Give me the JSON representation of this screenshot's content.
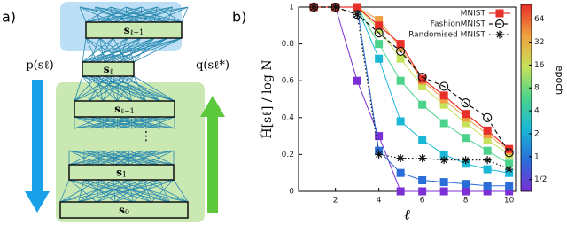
{
  "panel_labels": [
    "a)",
    "b)"
  ],
  "diagram": {
    "layers": [
      {
        "base": "s",
        "sub": "ℓ+1"
      },
      {
        "base": "s",
        "sub": "ℓ"
      },
      {
        "base": "s",
        "sub": "ℓ−1"
      },
      {
        "base": "s",
        "sub": "1"
      },
      {
        "base": "s",
        "sub": "0"
      }
    ],
    "ellipsis": "⋮",
    "left_arrow_label": "p(sℓ)",
    "right_arrow_label": "q(sℓ*)"
  },
  "chart_data": {
    "type": "line",
    "x_label": "ℓ",
    "y_label": "Ĥ[sℓ] / log N",
    "x": [
      1,
      2,
      3,
      4,
      5,
      6,
      7,
      8,
      9,
      10
    ],
    "xlim": [
      0.3,
      10.3
    ],
    "xticks": [
      2,
      4,
      6,
      8,
      10
    ],
    "ylim": [
      0,
      1
    ],
    "yticks": [
      0,
      0.2,
      0.4,
      0.6,
      0.8,
      1
    ],
    "legend": "upper right",
    "series": [
      {
        "name": "MNIST",
        "color": "#e8302a",
        "marker": "square",
        "dash": "solid",
        "values": [
          1,
          1,
          1,
          0.9,
          0.8,
          0.61,
          0.52,
          0.42,
          0.33,
          0.23
        ]
      },
      {
        "name": "FashionMNIST",
        "color": "#111111",
        "marker": "circle",
        "dash": "dashed",
        "values": [
          1,
          1,
          0.96,
          0.86,
          0.76,
          0.62,
          0.57,
          0.48,
          0.4,
          0.21
        ]
      },
      {
        "name": "Randomised MNIST",
        "color": "#111111",
        "marker": "star",
        "dash": "dotted",
        "values": [
          1,
          1,
          0.96,
          0.2,
          0.18,
          0.18,
          0.17,
          0.17,
          0.17,
          0.12
        ]
      }
    ],
    "epoch_series": [
      {
        "epoch": 0.5,
        "color": "#7b2fd4",
        "values": [
          1,
          1,
          0.6,
          0.3,
          0,
          0,
          0,
          0,
          0,
          0
        ]
      },
      {
        "epoch": 1,
        "color": "#2a6dd8",
        "values": [
          1,
          1,
          1,
          0.22,
          0.1,
          0.06,
          0.05,
          0.04,
          0.03,
          0.03
        ]
      },
      {
        "epoch": 2,
        "color": "#1ab8d6",
        "values": [
          1,
          1,
          1,
          0.72,
          0.38,
          0.28,
          0.2,
          0.15,
          0.12,
          0.1
        ]
      },
      {
        "epoch": 4,
        "color": "#4cd38b",
        "values": [
          1,
          1,
          1,
          0.8,
          0.6,
          0.47,
          0.37,
          0.29,
          0.22,
          0.15
        ]
      },
      {
        "epoch": 8,
        "color": "#c6e25a",
        "values": [
          1,
          1,
          1,
          0.88,
          0.72,
          0.57,
          0.47,
          0.37,
          0.28,
          0.2
        ]
      },
      {
        "epoch": 32,
        "color": "#f0a040",
        "values": [
          1,
          1,
          1,
          0.93,
          0.78,
          0.6,
          0.5,
          0.4,
          0.31,
          0.22
        ]
      }
    ],
    "colorbar": {
      "label": "epoch",
      "log": true,
      "lim": [
        0.35,
        100
      ],
      "colors": [
        "#7b2fd4",
        "#2a6dd8",
        "#1ab8d6",
        "#4cd38b",
        "#c6e25a",
        "#f0a040",
        "#e8302a"
      ],
      "ticks": [
        {
          "value": 0.5,
          "label": "1/2"
        },
        1,
        2,
        4,
        8,
        16,
        32,
        64
      ]
    }
  }
}
